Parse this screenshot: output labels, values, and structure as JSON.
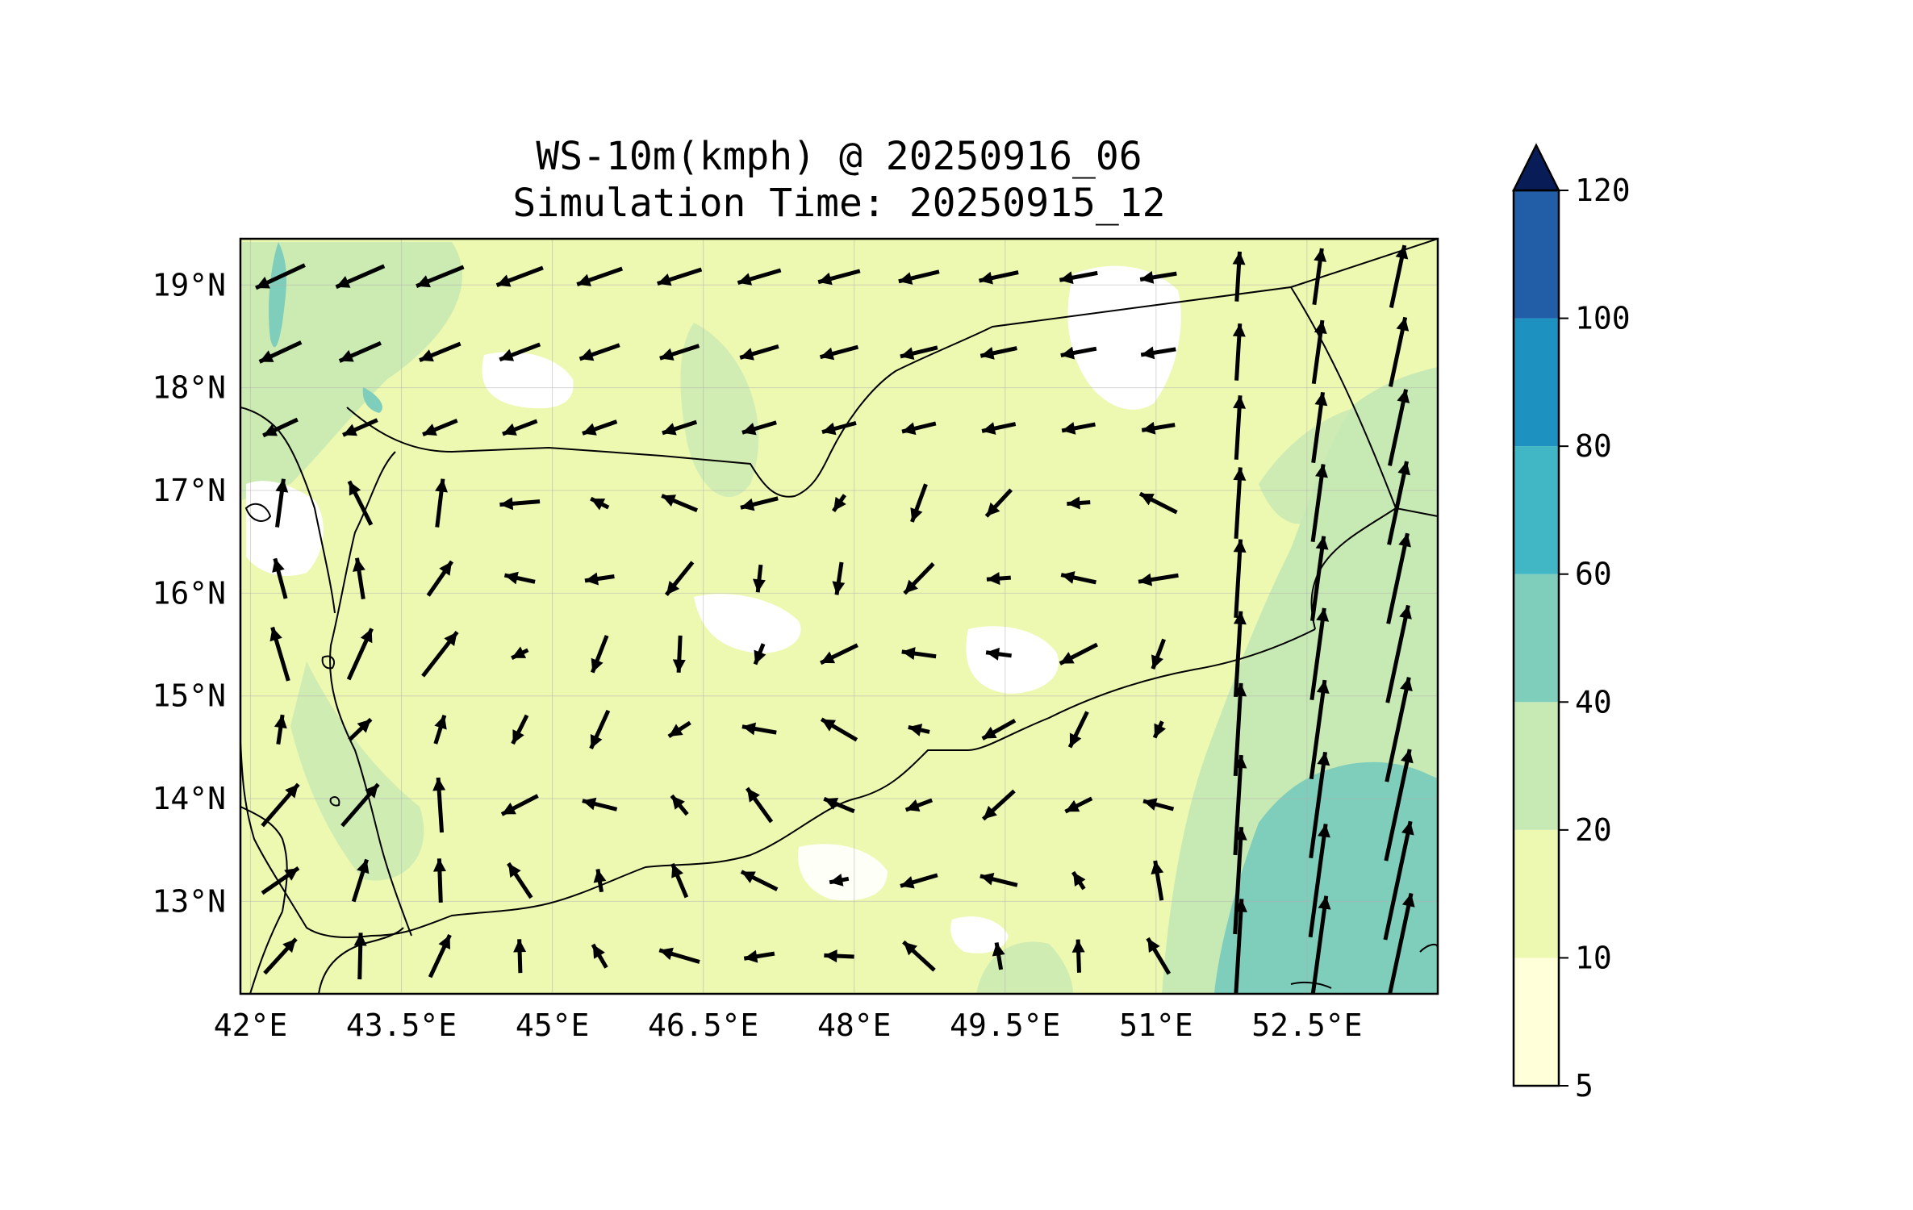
{
  "figure": {
    "title_line1": "WS-10m(kmph) @ 20250916_06",
    "title_line2": "Simulation Time: 20250915_12"
  },
  "map": {
    "lon_range": [
      41.9,
      53.8
    ],
    "lat_range": [
      12.1,
      19.45
    ],
    "x_ticks": [
      {
        "value": 42.0,
        "label": "42°E"
      },
      {
        "value": 43.5,
        "label": "43.5°E"
      },
      {
        "value": 45.0,
        "label": "45°E"
      },
      {
        "value": 46.5,
        "label": "46.5°E"
      },
      {
        "value": 48.0,
        "label": "48°E"
      },
      {
        "value": 49.5,
        "label": "49.5°E"
      },
      {
        "value": 51.0,
        "label": "51°E"
      },
      {
        "value": 52.5,
        "label": "52.5°E"
      }
    ],
    "y_ticks": [
      {
        "value": 13,
        "label": "13°N"
      },
      {
        "value": 14,
        "label": "14°N"
      },
      {
        "value": 15,
        "label": "15°N"
      },
      {
        "value": 16,
        "label": "16°N"
      },
      {
        "value": 17,
        "label": "17°N"
      },
      {
        "value": 18,
        "label": "18°N"
      },
      {
        "value": 19,
        "label": "19°N"
      }
    ],
    "grid": true
  },
  "colorbar": {
    "levels": [
      5,
      10,
      20,
      40,
      60,
      80,
      100,
      120
    ],
    "labels": [
      "5",
      "10",
      "20",
      "40",
      "60",
      "80",
      "100",
      "120"
    ],
    "colors": [
      "#ffffd9",
      "#edf8b1",
      "#c7e9b4",
      "#7fcdbb",
      "#41b6c4",
      "#1d91c0",
      "#225ea8",
      "#253494"
    ],
    "extend_color": "#081d58",
    "extend": "max"
  },
  "colors": {
    "land_base": "#edf8b1",
    "calm_patch": "#ffffff",
    "moderate": "#c7e9b4",
    "strong": "#7fcdbb",
    "arrow": "#000000"
  }
}
